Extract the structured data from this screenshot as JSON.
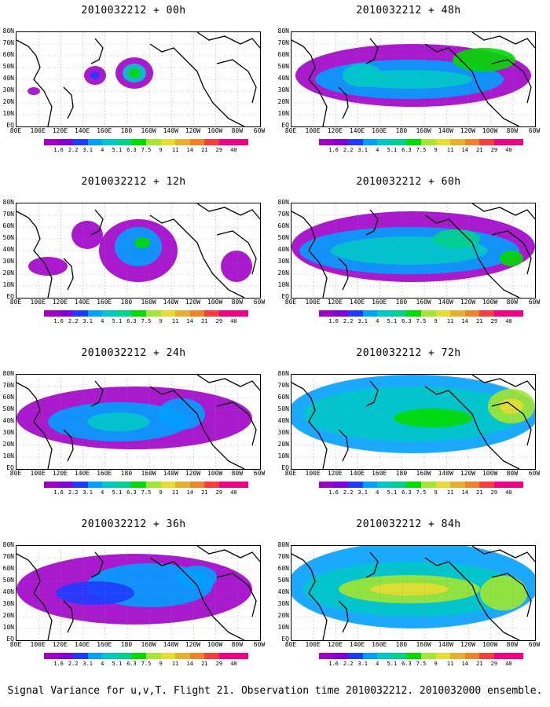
{
  "panels": [
    {
      "title": "2010032212 + 00h"
    },
    {
      "title": "2010032212 + 48h"
    },
    {
      "title": "2010032212 + 12h"
    },
    {
      "title": "2010032212 + 60h"
    },
    {
      "title": "2010032212 + 24h"
    },
    {
      "title": "2010032212 + 72h"
    },
    {
      "title": "2010032212 + 36h"
    },
    {
      "title": "2010032212 + 84h"
    }
  ],
  "y_axis_labels": [
    "80N",
    "70N",
    "60N",
    "50N",
    "40N",
    "30N",
    "20N",
    "10N",
    "EQ"
  ],
  "x_axis_labels": [
    "80E",
    "100E",
    "120E",
    "140E",
    "160E",
    "180",
    "160W",
    "140W",
    "120W",
    "100W",
    "80W",
    "60W"
  ],
  "colorbar": {
    "labels": [
      "1.6",
      "2.2",
      "3.1",
      "4",
      "5.1",
      "6.3",
      "7.5",
      "9",
      "11",
      "14",
      "21",
      "29",
      "40"
    ],
    "colors": [
      "#a000c8",
      "#8200dc",
      "#1e3cff",
      "#00a0ff",
      "#00c8c8",
      "#00d28c",
      "#00dc00",
      "#a0e632",
      "#e6dc32",
      "#e6af2d",
      "#f08228",
      "#fa3c3c",
      "#f00082"
    ]
  },
  "footer": "Signal Variance for u,v,T. Flight 21. Observation time 2010032212. 2010032000 ensemble."
}
